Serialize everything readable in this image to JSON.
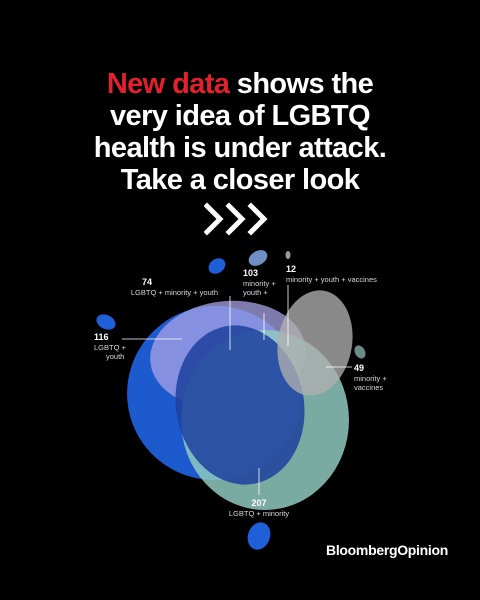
{
  "headline": {
    "accent": "New data",
    "rest_first": " shows the",
    "lines": [
      "very idea of LGBTQ",
      "health is under attack.",
      "Take a closer look"
    ]
  },
  "labels": {
    "lgbtq_minority_youth": {
      "count": "74",
      "text": "LGBTQ + minority + youth"
    },
    "minority_youth": {
      "count": "103",
      "line1": "minority +",
      "line2": "youth +"
    },
    "minority_youth_vaccines": {
      "count": "12",
      "text": "minority + youth + vaccines"
    },
    "lgbtq_youth": {
      "count": "116",
      "line1": "LGBTQ +",
      "line2": "youth"
    },
    "minority_vaccines": {
      "count": "49",
      "line1": "minority +",
      "line2": "vaccines"
    },
    "lgbtq_minority": {
      "count": "207",
      "text": "LGBTQ + minority"
    }
  },
  "brand": "BloombergOpinion",
  "colors": {
    "background": "#000000",
    "accent": "#e4202e",
    "blue": "#1f5fd8",
    "navy": "#1c3f9e",
    "lavender": "#a8a4e6",
    "teal": "#8fc9bf",
    "gray": "#a9a9a9"
  }
}
